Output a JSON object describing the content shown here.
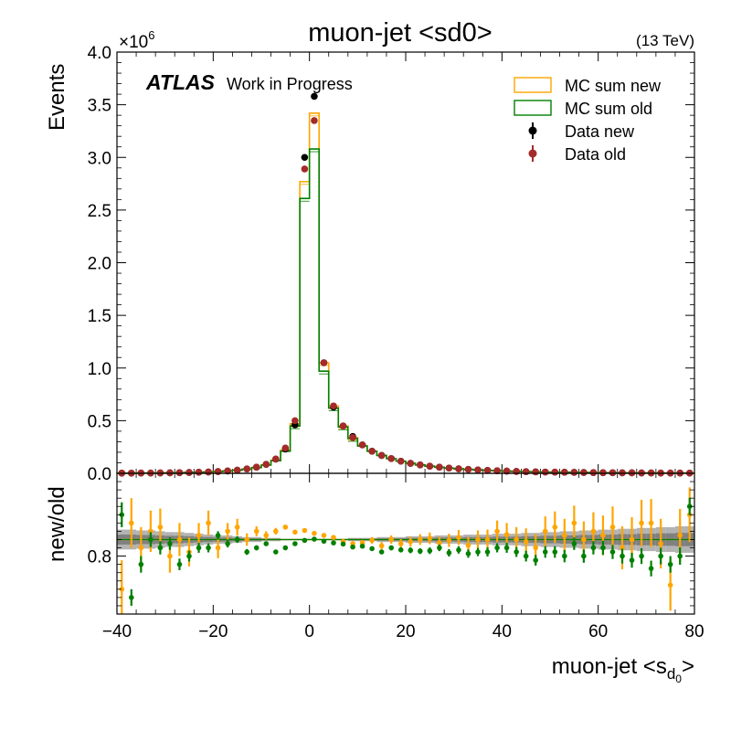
{
  "chart_data": {
    "type": "line",
    "title": "muon-jet <sd0>",
    "energy_label": "(13 TeV)",
    "experiment": "ATLAS",
    "status_label": "Work in Progress",
    "xlabel": "muon-jet <s",
    "xlabel_subscript": "d",
    "xlabel_subsubscript": "0",
    "xlabel_suffix": ">",
    "xlim": [
      -40,
      80
    ],
    "x_ticks": [
      "−40",
      "−20",
      "0",
      "20",
      "40",
      "60",
      "80"
    ],
    "main_panel": {
      "ylabel": "Events",
      "ylim": [
        0,
        4.0
      ],
      "y_multiplier_base": "×10",
      "y_multiplier_exp": "6",
      "y_ticks": [
        "0.0",
        "0.5",
        "1.0",
        "1.5",
        "2.0",
        "2.5",
        "3.0",
        "3.5",
        "4.0"
      ],
      "bin_edges": [
        -40,
        -38,
        -36,
        -34,
        -32,
        -30,
        -28,
        -26,
        -24,
        -22,
        -20,
        -18,
        -16,
        -14,
        -12,
        -10,
        -8,
        -6,
        -4,
        -2,
        0,
        2,
        4,
        6,
        8,
        10,
        12,
        14,
        16,
        18,
        20,
        22,
        24,
        26,
        28,
        30,
        32,
        34,
        36,
        38,
        40,
        42,
        44,
        46,
        48,
        50,
        52,
        54,
        56,
        58,
        60,
        62,
        64,
        66,
        68,
        70,
        72,
        74,
        76,
        78,
        80
      ],
      "series": [
        {
          "name": "MC sum new",
          "style": "step",
          "color": "#ffa500",
          "values": [
            0.002,
            0.002,
            0.003,
            0.003,
            0.004,
            0.005,
            0.006,
            0.008,
            0.01,
            0.013,
            0.017,
            0.022,
            0.03,
            0.04,
            0.055,
            0.08,
            0.125,
            0.22,
            0.47,
            2.77,
            3.42,
            1.05,
            0.64,
            0.45,
            0.34,
            0.26,
            0.21,
            0.17,
            0.14,
            0.115,
            0.095,
            0.08,
            0.068,
            0.058,
            0.05,
            0.043,
            0.037,
            0.032,
            0.028,
            0.024,
            0.021,
            0.018,
            0.016,
            0.014,
            0.012,
            0.011,
            0.01,
            0.009,
            0.008,
            0.007,
            0.006,
            0.0055,
            0.005,
            0.0045,
            0.004,
            0.0035,
            0.003,
            0.0028,
            0.0025,
            0.0022
          ]
        },
        {
          "name": "MC sum old",
          "style": "step",
          "color": "#008000",
          "values": [
            0.002,
            0.002,
            0.003,
            0.003,
            0.004,
            0.005,
            0.006,
            0.008,
            0.01,
            0.013,
            0.017,
            0.022,
            0.03,
            0.04,
            0.055,
            0.078,
            0.12,
            0.21,
            0.45,
            2.61,
            3.08,
            0.97,
            0.62,
            0.44,
            0.33,
            0.26,
            0.21,
            0.17,
            0.14,
            0.115,
            0.095,
            0.08,
            0.068,
            0.058,
            0.05,
            0.043,
            0.037,
            0.032,
            0.028,
            0.024,
            0.021,
            0.018,
            0.016,
            0.014,
            0.012,
            0.011,
            0.01,
            0.009,
            0.008,
            0.007,
            0.006,
            0.0055,
            0.005,
            0.0045,
            0.004,
            0.0035,
            0.003,
            0.0028,
            0.0025,
            0.0022
          ]
        },
        {
          "name": "Data new",
          "style": "points",
          "color": "#000000",
          "values": [
            0.002,
            0.002,
            0.003,
            0.003,
            0.004,
            0.005,
            0.006,
            0.008,
            0.01,
            0.013,
            0.017,
            0.022,
            0.03,
            0.042,
            0.058,
            0.085,
            0.135,
            0.23,
            0.46,
            3.0,
            3.58,
            1.05,
            0.63,
            0.45,
            0.35,
            0.27,
            0.21,
            0.17,
            0.14,
            0.115,
            0.095,
            0.08,
            0.068,
            0.058,
            0.05,
            0.043,
            0.037,
            0.032,
            0.028,
            0.024,
            0.021,
            0.018,
            0.016,
            0.014,
            0.012,
            0.011,
            0.01,
            0.009,
            0.008,
            0.007,
            0.006,
            0.0055,
            0.005,
            0.0045,
            0.004,
            0.0035,
            0.003,
            0.0028,
            0.0025,
            0.0022
          ]
        },
        {
          "name": "Data old",
          "style": "points",
          "color": "#a52a2a",
          "values": [
            0.002,
            0.002,
            0.003,
            0.003,
            0.004,
            0.005,
            0.006,
            0.008,
            0.01,
            0.013,
            0.017,
            0.022,
            0.03,
            0.042,
            0.058,
            0.085,
            0.135,
            0.24,
            0.5,
            2.89,
            3.35,
            1.05,
            0.64,
            0.45,
            0.34,
            0.27,
            0.21,
            0.17,
            0.14,
            0.115,
            0.095,
            0.08,
            0.068,
            0.058,
            0.05,
            0.043,
            0.037,
            0.032,
            0.028,
            0.024,
            0.021,
            0.018,
            0.016,
            0.014,
            0.012,
            0.011,
            0.01,
            0.009,
            0.008,
            0.007,
            0.006,
            0.0055,
            0.005,
            0.0045,
            0.004,
            0.0035,
            0.003,
            0.0028,
            0.0025,
            0.0022
          ]
        }
      ],
      "legend": [
        {
          "label": "MC sum new",
          "kind": "box",
          "color": "#ffa500"
        },
        {
          "label": "MC sum old",
          "kind": "box",
          "color": "#008000"
        },
        {
          "label": "Data new",
          "kind": "point",
          "color": "#000000"
        },
        {
          "label": "Data old",
          "kind": "point",
          "color": "#a52a2a"
        }
      ],
      "legend_position": "top-right"
    },
    "ratio_panel": {
      "ylabel": "new/old",
      "ylim": [
        0.66,
        1.0
      ],
      "y_ticks": [
        {
          "value": 0.8,
          "label": "0.8"
        }
      ],
      "band_colors": [
        "#808080",
        "#b3b3b3"
      ],
      "band_half_width": [
        0.012,
        0.012,
        0.011,
        0.011,
        0.01,
        0.009,
        0.009,
        0.008,
        0.007,
        0.006,
        0.005,
        0.005,
        0.004,
        0.003,
        0.003,
        0.002,
        0.002,
        0.001,
        0.001,
        0.001,
        0.001,
        0.001,
        0.001,
        0.001,
        0.002,
        0.002,
        0.002,
        0.003,
        0.003,
        0.003,
        0.004,
        0.004,
        0.004,
        0.005,
        0.005,
        0.005,
        0.006,
        0.006,
        0.006,
        0.007,
        0.007,
        0.007,
        0.008,
        0.008,
        0.009,
        0.009,
        0.01,
        0.01,
        0.011,
        0.011,
        0.012,
        0.012,
        0.013,
        0.013,
        0.014,
        0.014,
        0.015,
        0.015,
        0.016,
        0.016
      ],
      "x": [
        -39,
        -37,
        -35,
        -33,
        -31,
        -29,
        -27,
        -25,
        -23,
        -21,
        -19,
        -17,
        -15,
        -13,
        -11,
        -9,
        -7,
        -5,
        -3,
        -1,
        1,
        3,
        5,
        7,
        9,
        11,
        13,
        15,
        17,
        19,
        21,
        23,
        25,
        27,
        29,
        31,
        33,
        35,
        37,
        39,
        41,
        43,
        45,
        47,
        49,
        51,
        53,
        55,
        57,
        59,
        61,
        63,
        65,
        67,
        69,
        71,
        73,
        75,
        77,
        79
      ],
      "series": [
        {
          "name": "new",
          "color": "#ffa500",
          "values": [
            0.72,
            0.88,
            0.82,
            0.86,
            0.87,
            0.8,
            0.84,
            0.81,
            0.85,
            0.88,
            0.82,
            0.86,
            0.87,
            0.84,
            0.86,
            0.85,
            0.86,
            0.87,
            0.858,
            0.862,
            0.855,
            0.85,
            0.845,
            0.835,
            0.83,
            0.832,
            0.838,
            0.825,
            0.84,
            0.83,
            0.835,
            0.84,
            0.843,
            0.832,
            0.838,
            0.845,
            0.826,
            0.84,
            0.84,
            0.86,
            0.852,
            0.84,
            0.835,
            0.82,
            0.86,
            0.87,
            0.85,
            0.88,
            0.84,
            0.86,
            0.85,
            0.87,
            0.82,
            0.84,
            0.88,
            0.88,
            0.83,
            0.73,
            0.85,
            0.9
          ],
          "errors": [
            0.07,
            0.06,
            0.05,
            0.05,
            0.045,
            0.04,
            0.04,
            0.035,
            0.03,
            0.03,
            0.025,
            0.02,
            0.02,
            0.015,
            0.012,
            0.01,
            0.008,
            0.006,
            0.004,
            0.002,
            0.002,
            0.003,
            0.004,
            0.005,
            0.006,
            0.007,
            0.008,
            0.009,
            0.01,
            0.011,
            0.012,
            0.013,
            0.014,
            0.015,
            0.016,
            0.018,
            0.02,
            0.022,
            0.024,
            0.026,
            0.028,
            0.03,
            0.032,
            0.034,
            0.036,
            0.038,
            0.04,
            0.042,
            0.044,
            0.046,
            0.048,
            0.05,
            0.052,
            0.054,
            0.056,
            0.058,
            0.06,
            0.062,
            0.064,
            0.066
          ]
        },
        {
          "name": "old",
          "color": "#008000",
          "values": [
            0.9,
            0.7,
            0.78,
            0.84,
            0.82,
            0.83,
            0.78,
            0.8,
            0.82,
            0.82,
            0.85,
            0.83,
            0.84,
            0.81,
            0.82,
            0.83,
            0.81,
            0.82,
            0.83,
            0.838,
            0.841,
            0.836,
            0.832,
            0.829,
            0.822,
            0.824,
            0.818,
            0.81,
            0.82,
            0.815,
            0.814,
            0.812,
            0.813,
            0.82,
            0.808,
            0.815,
            0.806,
            0.81,
            0.81,
            0.82,
            0.82,
            0.81,
            0.8,
            0.79,
            0.81,
            0.81,
            0.8,
            0.83,
            0.8,
            0.82,
            0.82,
            0.81,
            0.8,
            0.79,
            0.8,
            0.77,
            0.8,
            0.78,
            0.8,
            0.92
          ],
          "errors": [
            0.03,
            0.02,
            0.02,
            0.018,
            0.016,
            0.015,
            0.014,
            0.013,
            0.012,
            0.011,
            0.01,
            0.009,
            0.008,
            0.007,
            0.006,
            0.005,
            0.004,
            0.003,
            0.002,
            0.001,
            0.001,
            0.002,
            0.003,
            0.003,
            0.004,
            0.004,
            0.005,
            0.005,
            0.006,
            0.006,
            0.007,
            0.007,
            0.008,
            0.008,
            0.009,
            0.009,
            0.01,
            0.01,
            0.011,
            0.011,
            0.012,
            0.012,
            0.013,
            0.013,
            0.014,
            0.014,
            0.015,
            0.015,
            0.016,
            0.016,
            0.017,
            0.017,
            0.018,
            0.018,
            0.019,
            0.019,
            0.02,
            0.02,
            0.021,
            0.021
          ]
        }
      ]
    }
  }
}
